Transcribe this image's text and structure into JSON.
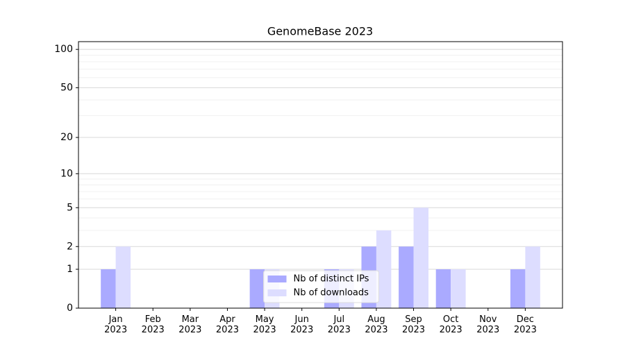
{
  "chart_data": {
    "type": "bar",
    "title": "GenomeBase 2023",
    "categories": [
      "Jan 2023",
      "Feb 2023",
      "Mar 2023",
      "Apr 2023",
      "May 2023",
      "Jun 2023",
      "Jul 2023",
      "Aug 2023",
      "Sep 2023",
      "Oct 2023",
      "Nov 2023",
      "Dec 2023"
    ],
    "series": [
      {
        "name": "Nb of distinct IPs",
        "color": "#aaaaff",
        "values": [
          1,
          0,
          0,
          0,
          1,
          0,
          1,
          2,
          2,
          1,
          0,
          1
        ]
      },
      {
        "name": "Nb of downloads",
        "color": "#ddddff",
        "values": [
          2,
          0,
          0,
          0,
          1,
          0,
          1,
          3,
          5,
          1,
          0,
          2
        ]
      }
    ],
    "yscale": "log1p",
    "ylim": [
      0,
      115
    ],
    "yticks": [
      0,
      1,
      2,
      5,
      10,
      20,
      50,
      100
    ],
    "minor_yticks": [
      3,
      4,
      6,
      7,
      8,
      9,
      30,
      40,
      60,
      70,
      80,
      90
    ],
    "grid": true,
    "legend": "lower center"
  }
}
